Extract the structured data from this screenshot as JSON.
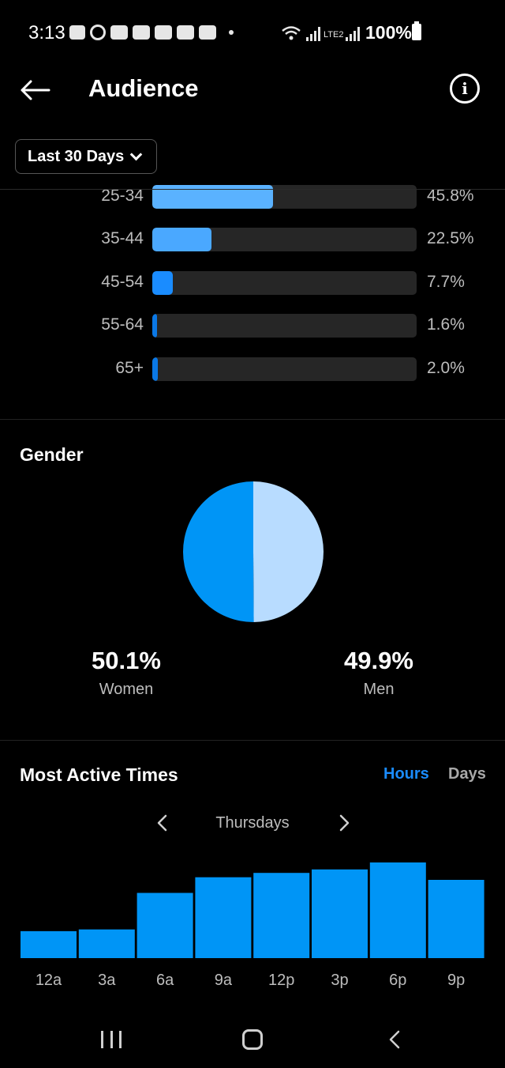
{
  "status_bar": {
    "time": "3:13",
    "battery": "100%",
    "network_label": "LTE2"
  },
  "header": {
    "title": "Audience",
    "period": "Last 30 Days"
  },
  "age_range": {
    "rows": [
      {
        "label": "25-34",
        "percent_label": "45.8%",
        "value": 45.8,
        "color": "#5ab2ff"
      },
      {
        "label": "35-44",
        "percent_label": "22.5%",
        "value": 22.5,
        "color": "#4aa8ff"
      },
      {
        "label": "45-54",
        "percent_label": "7.7%",
        "value": 7.7,
        "color": "#1a8cff"
      },
      {
        "label": "55-64",
        "percent_label": "1.6%",
        "value": 1.6,
        "color": "#0a78e6"
      },
      {
        "label": "65+",
        "percent_label": "2.0%",
        "value": 2.0,
        "color": "#0a78e6"
      }
    ],
    "scale_max": 100
  },
  "gender": {
    "title": "Gender",
    "women_value": "50.1%",
    "women_label": "Women",
    "men_value": "49.9%",
    "men_label": "Men",
    "women_share": 50.1,
    "men_share": 49.9,
    "women_color": "#0095f6",
    "men_color": "#b8dcff"
  },
  "most_active": {
    "title": "Most Active Times",
    "toggle_hours": "Hours",
    "toggle_days": "Days",
    "selected_toggle": "Hours",
    "day": "Thursdays",
    "bar_color": "#0095f6"
  },
  "chart_data": {
    "type": "bar",
    "categories": [
      "12a",
      "3a",
      "6a",
      "9a",
      "12p",
      "3p",
      "6p",
      "9p"
    ],
    "values": [
      31,
      33,
      75,
      93,
      98,
      102,
      110,
      90
    ],
    "title": "",
    "xlabel": "",
    "ylabel": "",
    "ylim": [
      0,
      120
    ],
    "grid": false
  }
}
